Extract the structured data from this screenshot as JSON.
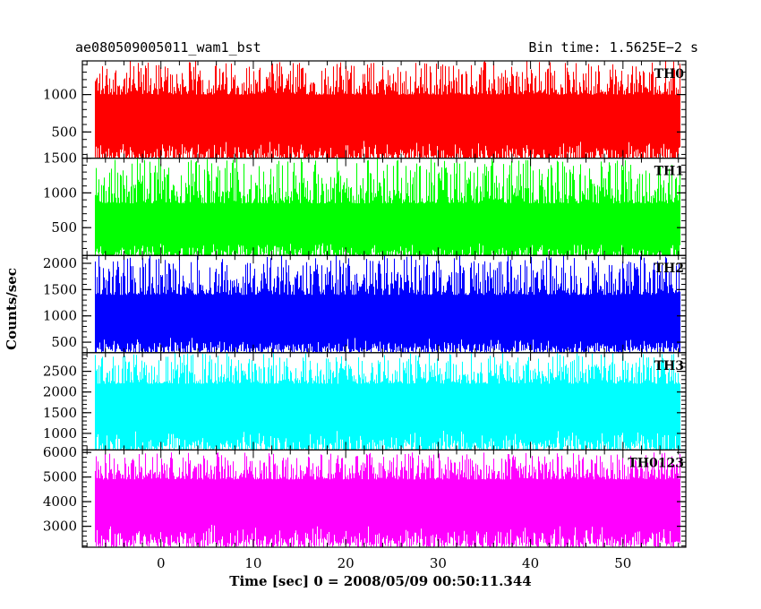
{
  "header": {
    "left_title": "ae080509005011_wam1_bst",
    "right_title": "Bin time: 1.5625E−2 s"
  },
  "chart_data": {
    "type": "line",
    "title": "ae080509005011_wam1_bst",
    "subtitle": "Bin time: 1.5625E−2 s",
    "xlabel": "Time [sec] 0 = 2008/05/09 00:50:11.344",
    "ylabel": "Counts/sec",
    "xlim": [
      -8.5,
      56.8
    ],
    "data_x_range": [
      -7.1,
      56.2
    ],
    "x_major_ticks": [
      0,
      10,
      20,
      30,
      40,
      50
    ],
    "x_tick_labels": [
      "0",
      "10",
      "20",
      "30",
      "40",
      "50"
    ],
    "x_minor_step": 2,
    "grid": false,
    "panels": [
      {
        "name": "TH0",
        "color": "#ff0000",
        "ylim": [
          150,
          1450
        ],
        "major_ticks": [
          500,
          1000
        ],
        "tick_labels": [
          "500",
          "1000"
        ],
        "minor_step": 100,
        "band_low": [
          100,
          400
        ],
        "band_high": [
          1000,
          1450
        ],
        "envelope": {
          "min": 100,
          "max": 1450
        }
      },
      {
        "name": "TH1",
        "color": "#00ff00",
        "ylim": [
          100,
          1500
        ],
        "major_ticks": [
          500,
          1000,
          1500
        ],
        "tick_labels": [
          "500",
          "1000",
          "1500"
        ],
        "minor_step": 100,
        "band_low": [
          50,
          300
        ],
        "band_high": [
          850,
          1500
        ],
        "envelope": {
          "min": 50,
          "max": 1500
        }
      },
      {
        "name": "TH2",
        "color": "#0000ff",
        "ylim": [
          300,
          2150
        ],
        "major_ticks": [
          500,
          1000,
          1500,
          2000
        ],
        "tick_labels": [
          "500",
          "1000",
          "1500",
          "2000"
        ],
        "minor_step": 100,
        "band_low": [
          300,
          600
        ],
        "band_high": [
          1400,
          2150
        ],
        "envelope": {
          "min": 300,
          "max": 2150
        }
      },
      {
        "name": "TH3",
        "color": "#00ffff",
        "ylim": [
          600,
          2950
        ],
        "major_ticks": [
          1000,
          1500,
          2000,
          2500
        ],
        "tick_labels": [
          "1000",
          "1500",
          "2000",
          "2500"
        ],
        "minor_step": 100,
        "band_low": [
          550,
          1100
        ],
        "band_high": [
          2200,
          2950
        ],
        "envelope": {
          "min": 550,
          "max": 2950
        }
      },
      {
        "name": "TH0123",
        "color": "#ff00ff",
        "ylim": [
          2150,
          6100
        ],
        "major_ticks": [
          3000,
          4000,
          5000,
          6000
        ],
        "tick_labels": [
          "3000",
          "4000",
          "5000",
          "6000"
        ],
        "minor_step": 200,
        "band_low": [
          2150,
          3100
        ],
        "band_high": [
          4900,
          6000
        ],
        "envelope": {
          "min": 2150,
          "max": 6000
        }
      }
    ]
  }
}
